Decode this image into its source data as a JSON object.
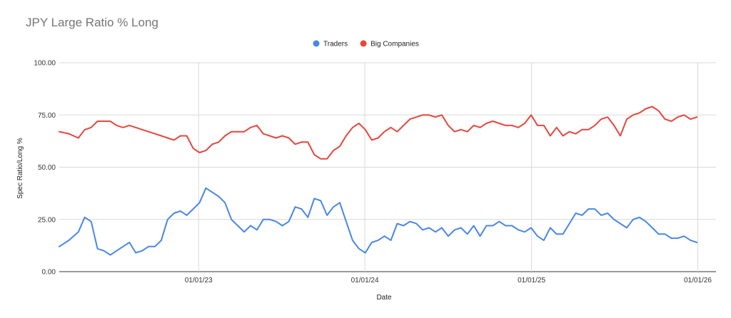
{
  "chart_data": {
    "type": "line",
    "title": "JPY Large Ratio % Long",
    "xlabel": "Date",
    "ylabel": "Spec Ratio/Long %",
    "ylim": [
      0,
      100
    ],
    "yticks": [
      "0.00",
      "25.00",
      "50.00",
      "75.00",
      "100.00"
    ],
    "x_range": [
      "2022-03-01",
      "2026-02-10"
    ],
    "xticks": [
      {
        "date": "2023-01-01",
        "label": "01/01/23"
      },
      {
        "date": "2024-01-01",
        "label": "01/01/24"
      },
      {
        "date": "2025-01-01",
        "label": "01/01/25"
      },
      {
        "date": "2026-01-01",
        "label": "01/01/26"
      }
    ],
    "grid": true,
    "legend_position": "top",
    "series": [
      {
        "name": "Traders",
        "color": "#4a86e8",
        "points": [
          [
            "2022-03-01",
            12
          ],
          [
            "2022-03-22",
            15
          ],
          [
            "2022-04-12",
            19
          ],
          [
            "2022-04-26",
            26
          ],
          [
            "2022-05-10",
            24
          ],
          [
            "2022-05-24",
            11
          ],
          [
            "2022-06-07",
            10
          ],
          [
            "2022-06-21",
            8
          ],
          [
            "2022-07-05",
            10
          ],
          [
            "2022-07-19",
            12
          ],
          [
            "2022-08-02",
            14
          ],
          [
            "2022-08-16",
            9
          ],
          [
            "2022-08-30",
            10
          ],
          [
            "2022-09-13",
            12
          ],
          [
            "2022-09-27",
            12
          ],
          [
            "2022-10-11",
            15
          ],
          [
            "2022-10-25",
            25
          ],
          [
            "2022-11-08",
            28
          ],
          [
            "2022-11-22",
            29
          ],
          [
            "2022-12-06",
            27
          ],
          [
            "2022-12-20",
            30
          ],
          [
            "2023-01-03",
            33
          ],
          [
            "2023-01-17",
            40
          ],
          [
            "2023-01-31",
            38
          ],
          [
            "2023-02-14",
            36
          ],
          [
            "2023-02-28",
            33
          ],
          [
            "2023-03-14",
            25
          ],
          [
            "2023-03-28",
            22
          ],
          [
            "2023-04-11",
            19
          ],
          [
            "2023-04-25",
            22
          ],
          [
            "2023-05-09",
            20
          ],
          [
            "2023-05-23",
            25
          ],
          [
            "2023-06-06",
            25
          ],
          [
            "2023-06-20",
            24
          ],
          [
            "2023-07-04",
            22
          ],
          [
            "2023-07-18",
            24
          ],
          [
            "2023-08-01",
            31
          ],
          [
            "2023-08-15",
            30
          ],
          [
            "2023-08-29",
            26
          ],
          [
            "2023-09-12",
            35
          ],
          [
            "2023-09-26",
            34
          ],
          [
            "2023-10-10",
            27
          ],
          [
            "2023-10-24",
            31
          ],
          [
            "2023-11-07",
            33
          ],
          [
            "2023-11-21",
            24
          ],
          [
            "2023-12-05",
            15
          ],
          [
            "2023-12-19",
            11
          ],
          [
            "2024-01-02",
            9
          ],
          [
            "2024-01-16",
            14
          ],
          [
            "2024-01-30",
            15
          ],
          [
            "2024-02-13",
            17
          ],
          [
            "2024-02-27",
            15
          ],
          [
            "2024-03-12",
            23
          ],
          [
            "2024-03-26",
            22
          ],
          [
            "2024-04-09",
            24
          ],
          [
            "2024-04-23",
            23
          ],
          [
            "2024-05-07",
            20
          ],
          [
            "2024-05-21",
            21
          ],
          [
            "2024-06-04",
            19
          ],
          [
            "2024-06-18",
            21
          ],
          [
            "2024-07-02",
            17
          ],
          [
            "2024-07-16",
            20
          ],
          [
            "2024-07-30",
            21
          ],
          [
            "2024-08-13",
            18
          ],
          [
            "2024-08-27",
            22
          ],
          [
            "2024-09-10",
            17
          ],
          [
            "2024-09-24",
            22
          ],
          [
            "2024-10-08",
            22
          ],
          [
            "2024-10-22",
            24
          ],
          [
            "2024-11-05",
            22
          ],
          [
            "2024-11-19",
            22
          ],
          [
            "2024-12-03",
            20
          ],
          [
            "2024-12-17",
            19
          ],
          [
            "2024-12-31",
            21
          ],
          [
            "2025-01-14",
            17
          ],
          [
            "2025-01-28",
            15
          ],
          [
            "2025-02-11",
            21
          ],
          [
            "2025-02-25",
            18
          ],
          [
            "2025-03-11",
            18
          ],
          [
            "2025-03-25",
            23
          ],
          [
            "2025-04-08",
            28
          ],
          [
            "2025-04-22",
            27
          ],
          [
            "2025-05-06",
            30
          ],
          [
            "2025-05-20",
            30
          ],
          [
            "2025-06-03",
            27
          ],
          [
            "2025-06-17",
            28
          ],
          [
            "2025-07-01",
            25
          ],
          [
            "2025-07-15",
            23
          ],
          [
            "2025-07-29",
            21
          ],
          [
            "2025-08-12",
            25
          ],
          [
            "2025-08-26",
            26
          ],
          [
            "2025-09-09",
            24
          ],
          [
            "2025-09-23",
            21
          ],
          [
            "2025-10-07",
            18
          ],
          [
            "2025-10-21",
            18
          ],
          [
            "2025-11-04",
            16
          ],
          [
            "2025-11-18",
            16
          ],
          [
            "2025-12-02",
            17
          ],
          [
            "2025-12-16",
            15
          ],
          [
            "2025-12-30",
            14
          ]
        ]
      },
      {
        "name": "Big Companies",
        "color": "#e8453c",
        "points": [
          [
            "2022-03-01",
            67
          ],
          [
            "2022-03-22",
            66
          ],
          [
            "2022-04-12",
            64
          ],
          [
            "2022-04-26",
            68
          ],
          [
            "2022-05-10",
            69
          ],
          [
            "2022-05-24",
            72
          ],
          [
            "2022-06-07",
            72
          ],
          [
            "2022-06-21",
            72
          ],
          [
            "2022-07-05",
            70
          ],
          [
            "2022-07-19",
            69
          ],
          [
            "2022-08-02",
            70
          ],
          [
            "2022-08-16",
            69
          ],
          [
            "2022-08-30",
            68
          ],
          [
            "2022-09-13",
            67
          ],
          [
            "2022-09-27",
            66
          ],
          [
            "2022-10-11",
            65
          ],
          [
            "2022-10-25",
            64
          ],
          [
            "2022-11-08",
            63
          ],
          [
            "2022-11-22",
            65
          ],
          [
            "2022-12-06",
            65
          ],
          [
            "2022-12-20",
            59
          ],
          [
            "2023-01-03",
            57
          ],
          [
            "2023-01-17",
            58
          ],
          [
            "2023-01-31",
            61
          ],
          [
            "2023-02-14",
            62
          ],
          [
            "2023-02-28",
            65
          ],
          [
            "2023-03-14",
            67
          ],
          [
            "2023-03-28",
            67
          ],
          [
            "2023-04-11",
            67
          ],
          [
            "2023-04-25",
            69
          ],
          [
            "2023-05-09",
            70
          ],
          [
            "2023-05-23",
            66
          ],
          [
            "2023-06-06",
            65
          ],
          [
            "2023-06-20",
            64
          ],
          [
            "2023-07-04",
            65
          ],
          [
            "2023-07-18",
            64
          ],
          [
            "2023-08-01",
            61
          ],
          [
            "2023-08-15",
            62
          ],
          [
            "2023-08-29",
            62
          ],
          [
            "2023-09-12",
            56
          ],
          [
            "2023-09-26",
            54
          ],
          [
            "2023-10-10",
            54
          ],
          [
            "2023-10-24",
            58
          ],
          [
            "2023-11-07",
            60
          ],
          [
            "2023-11-21",
            65
          ],
          [
            "2023-12-05",
            69
          ],
          [
            "2023-12-19",
            71
          ],
          [
            "2024-01-02",
            68
          ],
          [
            "2024-01-16",
            63
          ],
          [
            "2024-01-30",
            64
          ],
          [
            "2024-02-13",
            67
          ],
          [
            "2024-02-27",
            69
          ],
          [
            "2024-03-12",
            67
          ],
          [
            "2024-03-26",
            70
          ],
          [
            "2024-04-09",
            73
          ],
          [
            "2024-04-23",
            74
          ],
          [
            "2024-05-07",
            75
          ],
          [
            "2024-05-21",
            75
          ],
          [
            "2024-06-04",
            74
          ],
          [
            "2024-06-18",
            75
          ],
          [
            "2024-07-02",
            70
          ],
          [
            "2024-07-16",
            67
          ],
          [
            "2024-07-30",
            68
          ],
          [
            "2024-08-13",
            67
          ],
          [
            "2024-08-27",
            70
          ],
          [
            "2024-09-10",
            69
          ],
          [
            "2024-09-24",
            71
          ],
          [
            "2024-10-08",
            72
          ],
          [
            "2024-10-22",
            71
          ],
          [
            "2024-11-05",
            70
          ],
          [
            "2024-11-19",
            70
          ],
          [
            "2024-12-03",
            69
          ],
          [
            "2024-12-17",
            71
          ],
          [
            "2024-12-31",
            75
          ],
          [
            "2025-01-14",
            70
          ],
          [
            "2025-01-28",
            70
          ],
          [
            "2025-02-11",
            65
          ],
          [
            "2025-02-25",
            69
          ],
          [
            "2025-03-11",
            65
          ],
          [
            "2025-03-25",
            67
          ],
          [
            "2025-04-08",
            66
          ],
          [
            "2025-04-22",
            68
          ],
          [
            "2025-05-06",
            68
          ],
          [
            "2025-05-20",
            70
          ],
          [
            "2025-06-03",
            73
          ],
          [
            "2025-06-17",
            74
          ],
          [
            "2025-07-01",
            70
          ],
          [
            "2025-07-15",
            65
          ],
          [
            "2025-07-29",
            73
          ],
          [
            "2025-08-12",
            75
          ],
          [
            "2025-08-26",
            76
          ],
          [
            "2025-09-09",
            78
          ],
          [
            "2025-09-23",
            79
          ],
          [
            "2025-10-07",
            77
          ],
          [
            "2025-10-21",
            73
          ],
          [
            "2025-11-04",
            72
          ],
          [
            "2025-11-18",
            74
          ],
          [
            "2025-12-02",
            75
          ],
          [
            "2025-12-16",
            73
          ],
          [
            "2025-12-30",
            74
          ]
        ]
      }
    ]
  }
}
